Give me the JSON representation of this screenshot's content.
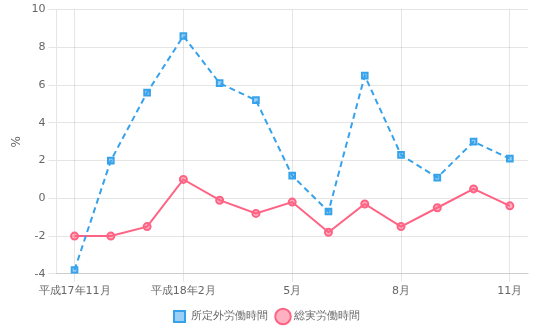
{
  "chart_data": {
    "type": "line",
    "ylabel": "%",
    "categories": [
      "平成17年11月",
      null,
      null,
      "平成18年2月",
      null,
      null,
      "5月",
      null,
      null,
      "8月",
      null,
      null,
      "11月"
    ],
    "series": [
      {
        "name": "所定外労働時間",
        "marker": "square",
        "line_style": "dashed",
        "values": [
          -3.8,
          2.0,
          5.6,
          8.6,
          6.1,
          5.2,
          1.2,
          -0.7,
          6.5,
          2.3,
          1.1,
          3.0,
          2.1
        ]
      },
      {
        "name": "総実労働時間",
        "marker": "circle",
        "line_style": "solid",
        "values": [
          -2.0,
          -2.0,
          -1.5,
          1.0,
          -0.1,
          -0.8,
          -0.2,
          -1.8,
          -0.3,
          -1.5,
          -0.5,
          0.5,
          -0.4
        ]
      }
    ],
    "ylim": [
      -4,
      10
    ],
    "yticks": [
      -4,
      -2,
      0,
      2,
      4,
      6,
      8,
      10
    ],
    "grid": true,
    "legend": "bottom"
  }
}
